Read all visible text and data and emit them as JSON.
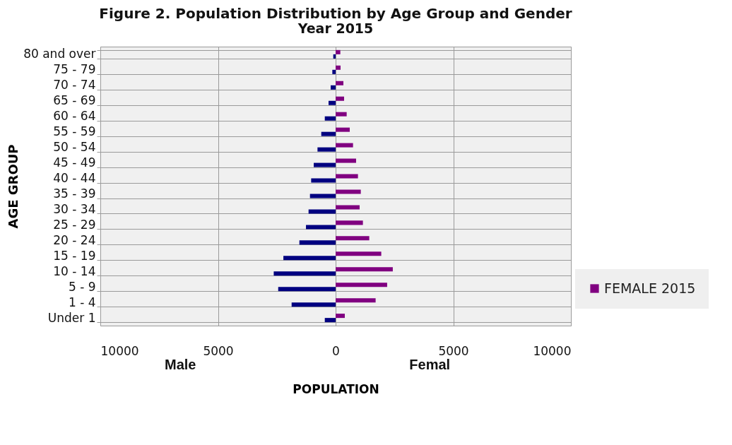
{
  "chart_data": {
    "type": "bar",
    "orientation": "horizontal",
    "title": "Figure 2. Population Distribution by Age Group and Gender",
    "subtitle": "Year 2015",
    "xlabel": "POPULATION",
    "ylabel": "AGE GROUP",
    "categories": [
      "80 and over",
      "75 - 79",
      "70 - 74",
      "65 - 69",
      "60 - 64",
      "55 - 59",
      "50 - 54",
      "45 - 49",
      "40 - 44",
      "35 - 39",
      "30 - 34",
      "25 - 29",
      "20 - 24",
      "15 - 19",
      "10 - 14",
      "5 - 9",
      "1 - 4",
      "Under 1"
    ],
    "series": [
      {
        "name": "FEMALE 2015",
        "color": "#800080",
        "values": [
          200,
          210,
          330,
          360,
          470,
          600,
          740,
          870,
          950,
          1070,
          1020,
          1160,
          1430,
          1940,
          2430,
          2190,
          1700,
          390
        ]
      },
      {
        "color": "#000080",
        "values": [
          -100,
          -140,
          -210,
          -300,
          -460,
          -610,
          -770,
          -930,
          -1040,
          -1090,
          -1150,
          -1260,
          -1540,
          -2220,
          -2630,
          -2440,
          -1870,
          -460
        ]
      }
    ],
    "xlim": [
      -10000,
      10000
    ],
    "xticks": [
      {
        "value": -10000,
        "label": "10000"
      },
      {
        "value": -5000,
        "label": "5000"
      },
      0,
      5000,
      10000
    ],
    "grid": true,
    "legend": "right",
    "annotations": [
      "Male",
      "Femal"
    ]
  }
}
